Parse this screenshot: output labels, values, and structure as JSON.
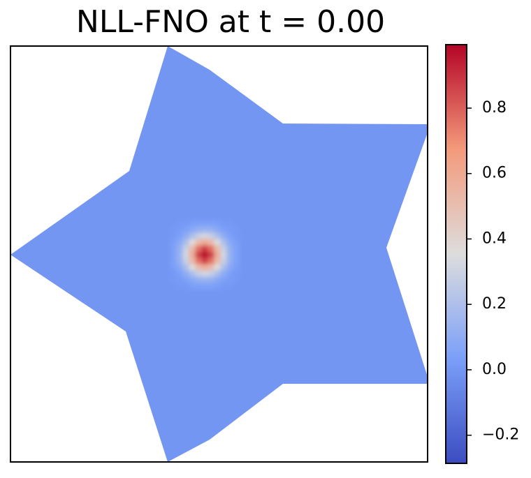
{
  "chart_data": {
    "type": "heatmap",
    "title": "NLL-FNO at t = 0.00",
    "colormap": [
      "#3b4cc0",
      "#7b9ff9",
      "#dddddd",
      "#f49a7b",
      "#b40426"
    ],
    "clim": [
      -0.286,
      0.994
    ],
    "cticks": [
      {
        "value": -0.2,
        "label": "−0.2"
      },
      {
        "value": 0,
        "label": "0.0"
      },
      0.2,
      0.4,
      0.6,
      0.8
    ],
    "field": {
      "fill_value": 0,
      "values": [
        [
          0,
          0.01,
          0.01,
          0.03,
          0.04,
          0.04,
          0.04,
          0.03,
          0.01,
          0.01,
          0
        ],
        [
          0.01,
          0.02,
          0.04,
          0.08,
          0.12,
          0.13,
          0.12,
          0.08,
          0.04,
          0.02,
          0.01
        ],
        [
          0.01,
          0.04,
          0.1,
          0.19,
          0.28,
          0.32,
          0.28,
          0.19,
          0.1,
          0.04,
          0.01
        ],
        [
          0.03,
          0.08,
          0.19,
          0.36,
          0.52,
          0.59,
          0.52,
          0.36,
          0.19,
          0.08,
          0.03
        ],
        [
          0.04,
          0.12,
          0.28,
          0.52,
          0.76,
          0.87,
          0.76,
          0.52,
          0.28,
          0.12,
          0.04
        ],
        [
          0.04,
          0.13,
          0.32,
          0.59,
          0.87,
          0.98,
          0.87,
          0.59,
          0.32,
          0.13,
          0.04
        ],
        [
          0.04,
          0.12,
          0.28,
          0.52,
          0.76,
          0.87,
          0.76,
          0.52,
          0.28,
          0.12,
          0.04
        ],
        [
          0.03,
          0.08,
          0.19,
          0.36,
          0.52,
          0.59,
          0.52,
          0.36,
          0.19,
          0.08,
          0.03
        ],
        [
          0.01,
          0.04,
          0.1,
          0.19,
          0.28,
          0.32,
          0.28,
          0.19,
          0.1,
          0.04,
          0.01
        ],
        [
          0.01,
          0.02,
          0.04,
          0.08,
          0.12,
          0.13,
          0.12,
          0.08,
          0.04,
          0.02,
          0.01
        ],
        [
          0,
          0.01,
          0.01,
          0.03,
          0.04,
          0.04,
          0.04,
          0.03,
          0.01,
          0.01,
          0
        ]
      ]
    }
  }
}
